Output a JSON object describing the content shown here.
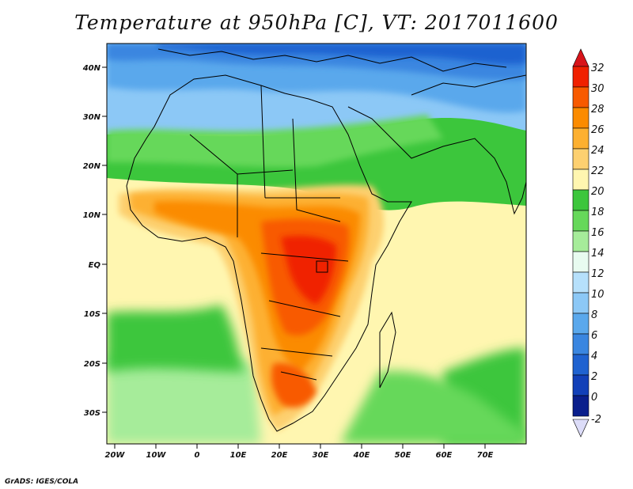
{
  "title": "Temperature at 950hPa [C], VT: 2017011600",
  "credit": "GrADS: IGES/COLA",
  "map": {
    "lat_labels": [
      "40N",
      "30N",
      "20N",
      "10N",
      "EQ",
      "10S",
      "20S",
      "30S"
    ],
    "lon_labels": [
      "20W",
      "10W",
      "0",
      "10E",
      "20E",
      "30E",
      "40E",
      "50E",
      "60E",
      "70E"
    ]
  },
  "colorbar": {
    "levels": [
      "32",
      "30",
      "28",
      "26",
      "24",
      "22",
      "20",
      "18",
      "16",
      "14",
      "12",
      "10",
      "8",
      "6",
      "4",
      "2",
      "0",
      "-2"
    ],
    "colors": [
      "#f02000",
      "#f85a00",
      "#fb8b00",
      "#fdb030",
      "#fdd070",
      "#fff6b0",
      "#3cc63c",
      "#66d85a",
      "#a6ec9a",
      "#e8fbf0",
      "#b6e0fb",
      "#8cc8f6",
      "#5aa8ec",
      "#3a86e0",
      "#1f62d0",
      "#1240b8",
      "#0a1f8c"
    ],
    "top_color": "#d8141a",
    "bottom_color": "#dcdcf8"
  }
}
